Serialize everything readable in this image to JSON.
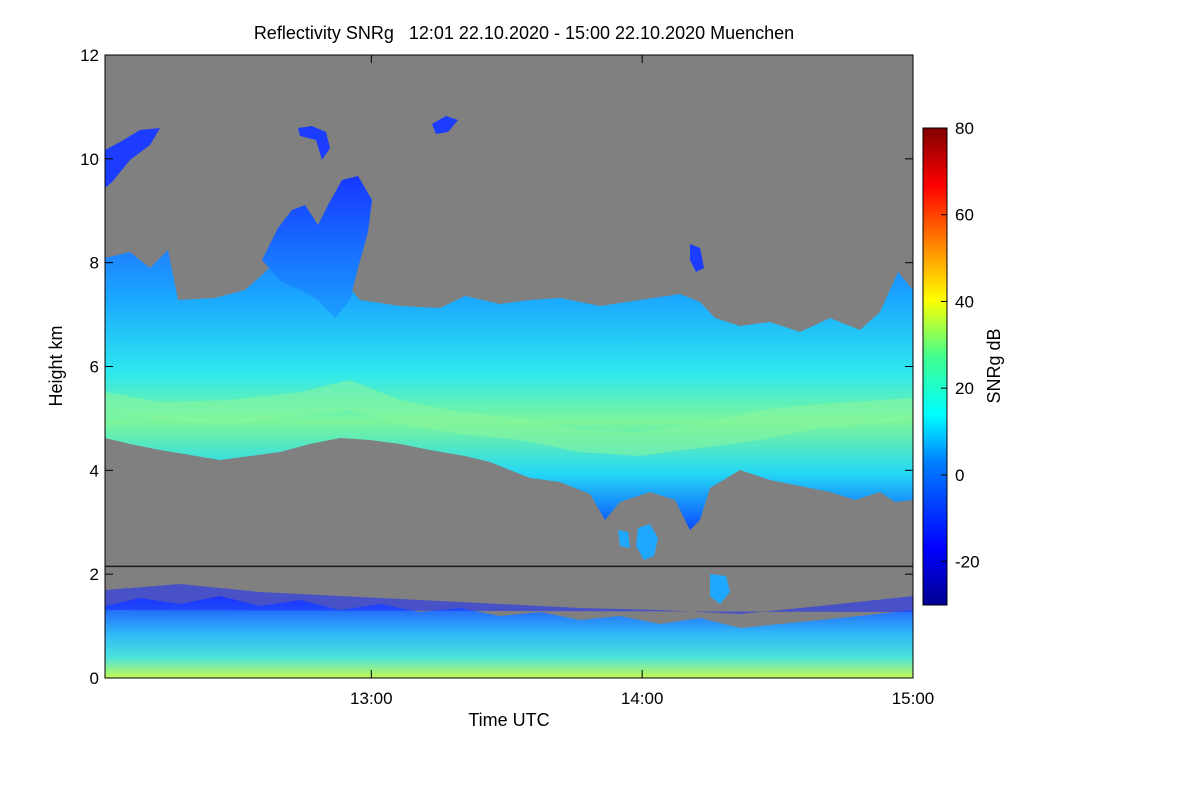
{
  "chart_data": {
    "type": "heatmap",
    "title": "Reflectivity SNRg   12:01 22.10.2020 - 15:00 22.10.2020 Muenchen",
    "xlabel": "Time UTC",
    "ylabel": "Height km",
    "x_range_hours": [
      12.0167,
      15.0
    ],
    "y_range_km": [
      0,
      12
    ],
    "x_ticks": [
      {
        "value": 13.0,
        "label": "13:00"
      },
      {
        "value": 14.0,
        "label": "14:00"
      },
      {
        "value": 15.0,
        "label": "15:00"
      }
    ],
    "y_ticks": [
      {
        "value": 0,
        "label": "0"
      },
      {
        "value": 2,
        "label": "2"
      },
      {
        "value": 4,
        "label": "4"
      },
      {
        "value": 6,
        "label": "6"
      },
      {
        "value": 8,
        "label": "8"
      },
      {
        "value": 10,
        "label": "10"
      },
      {
        "value": 12,
        "label": "12"
      }
    ],
    "separator_line_height_km": 2.15,
    "colorbar": {
      "label": "SNRg dB",
      "range": [
        -30,
        80
      ],
      "ticks": [
        {
          "value": -20,
          "label": "-20"
        },
        {
          "value": 0,
          "label": "0"
        },
        {
          "value": 20,
          "label": "20"
        },
        {
          "value": 40,
          "label": "40"
        },
        {
          "value": 60,
          "label": "60"
        },
        {
          "value": 80,
          "label": "80"
        }
      ]
    },
    "features": [
      {
        "name": "main-cloud-layer",
        "x_start": 12.0167,
        "x_end": 15.0,
        "base_km": 4.3,
        "top_km": 7.5,
        "peak_snr_db": 30
      },
      {
        "name": "convective-turret",
        "x_start": 12.6,
        "x_end": 13.0,
        "base_km": 6.5,
        "top_km": 9.6,
        "peak_snr_db": 10
      },
      {
        "name": "high-cirrus",
        "x_start": 12.0167,
        "x_end": 12.2,
        "base_km": 9.5,
        "top_km": 10.6,
        "peak_snr_db": -5
      },
      {
        "name": "boundary-layer-clutter",
        "x_start": 12.0167,
        "x_end": 15.0,
        "base_km": 0,
        "top_km": 1.8,
        "peak_snr_db": 30
      }
    ]
  }
}
